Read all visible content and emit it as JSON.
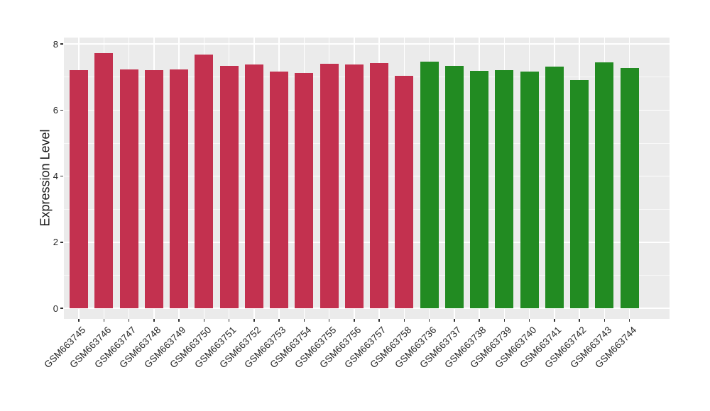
{
  "chart_data": {
    "type": "bar",
    "title": "",
    "xlabel": "",
    "ylabel": "Expression Level",
    "ylim": [
      0,
      8
    ],
    "yticks": [
      0,
      2,
      4,
      6,
      8
    ],
    "yminorticks": [
      1,
      3,
      5,
      7
    ],
    "legend_position": "none",
    "grid": "white major and minor gridlines on gray panel",
    "panel_bg": "#EBEBEB",
    "grid_color": "#FFFFFF",
    "axis_text_color": "#262626",
    "groups": {
      "red": "#C3314F",
      "green": "#228B22"
    },
    "bars": [
      {
        "label": "GSM663745",
        "value": 7.21,
        "group": "red"
      },
      {
        "label": "GSM663746",
        "value": 7.73,
        "group": "red"
      },
      {
        "label": "GSM663747",
        "value": 7.24,
        "group": "red"
      },
      {
        "label": "GSM663748",
        "value": 7.2,
        "group": "red"
      },
      {
        "label": "GSM663749",
        "value": 7.23,
        "group": "red"
      },
      {
        "label": "GSM663750",
        "value": 7.69,
        "group": "red"
      },
      {
        "label": "GSM663751",
        "value": 7.33,
        "group": "red"
      },
      {
        "label": "GSM663752",
        "value": 7.38,
        "group": "red"
      },
      {
        "label": "GSM663753",
        "value": 7.17,
        "group": "red"
      },
      {
        "label": "GSM663754",
        "value": 7.12,
        "group": "red"
      },
      {
        "label": "GSM663755",
        "value": 7.4,
        "group": "red"
      },
      {
        "label": "GSM663756",
        "value": 7.38,
        "group": "red"
      },
      {
        "label": "GSM663757",
        "value": 7.42,
        "group": "red"
      },
      {
        "label": "GSM663758",
        "value": 7.04,
        "group": "red"
      },
      {
        "label": "GSM663736",
        "value": 7.47,
        "group": "green"
      },
      {
        "label": "GSM663737",
        "value": 7.33,
        "group": "green"
      },
      {
        "label": "GSM663738",
        "value": 7.19,
        "group": "green"
      },
      {
        "label": "GSM663739",
        "value": 7.22,
        "group": "green"
      },
      {
        "label": "GSM663740",
        "value": 7.17,
        "group": "green"
      },
      {
        "label": "GSM663741",
        "value": 7.32,
        "group": "green"
      },
      {
        "label": "GSM663742",
        "value": 6.92,
        "group": "green"
      },
      {
        "label": "GSM663743",
        "value": 7.44,
        "group": "green"
      },
      {
        "label": "GSM663744",
        "value": 7.27,
        "group": "green"
      }
    ]
  }
}
